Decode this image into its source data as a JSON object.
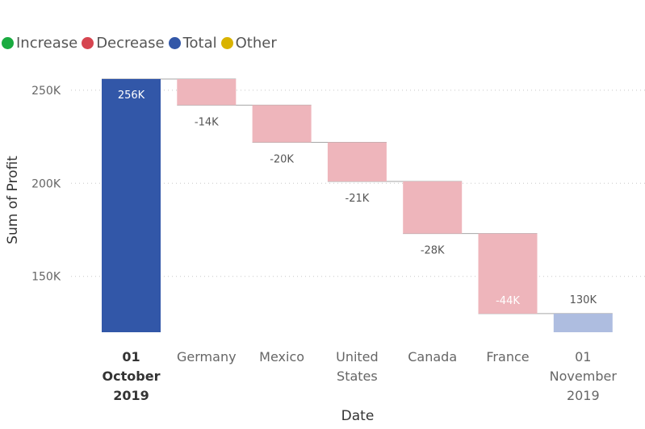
{
  "chart_data": {
    "type": "waterfall",
    "title": "",
    "xlabel": "Date",
    "ylabel": "Sum of Profit",
    "ylim": [
      120,
      260
    ],
    "yticks": [
      {
        "value": 150,
        "label": "150K"
      },
      {
        "value": 200,
        "label": "200K"
      },
      {
        "value": 250,
        "label": "250K"
      }
    ],
    "grid": true,
    "legend_position": "top-left",
    "legend": [
      {
        "name": "Increase",
        "color": "#1aab40"
      },
      {
        "name": "Decrease",
        "color": "#d64550"
      },
      {
        "name": "Total",
        "color": "#3257a8"
      },
      {
        "name": "Other",
        "color": "#d9b300"
      }
    ],
    "categories": [
      {
        "lines": [
          "01",
          "October",
          "2019"
        ],
        "bold": true
      },
      {
        "lines": [
          "Germany"
        ]
      },
      {
        "lines": [
          "Mexico"
        ]
      },
      {
        "lines": [
          "United",
          "States"
        ]
      },
      {
        "lines": [
          "Canada"
        ]
      },
      {
        "lines": [
          "France"
        ]
      },
      {
        "lines": [
          "01",
          "November",
          "2019"
        ]
      }
    ],
    "bars": [
      {
        "kind": "total",
        "start": 0,
        "end": 256,
        "label": "256K",
        "color": "#3257a8"
      },
      {
        "kind": "decrease",
        "start": 256,
        "end": 242,
        "label": "-14K",
        "color": "#eeb5bb"
      },
      {
        "kind": "decrease",
        "start": 242,
        "end": 222,
        "label": "-20K",
        "color": "#eeb5bb"
      },
      {
        "kind": "decrease",
        "start": 222,
        "end": 201,
        "label": "-21K",
        "color": "#eeb5bb"
      },
      {
        "kind": "decrease",
        "start": 201,
        "end": 173,
        "label": "-28K",
        "color": "#eeb5bb"
      },
      {
        "kind": "decrease",
        "start": 173,
        "end": 130,
        "label": "-44K",
        "color": "#eeb5bb"
      },
      {
        "kind": "total",
        "start": 0,
        "end": 130,
        "label": "130K",
        "color": "#aebde0"
      }
    ]
  }
}
